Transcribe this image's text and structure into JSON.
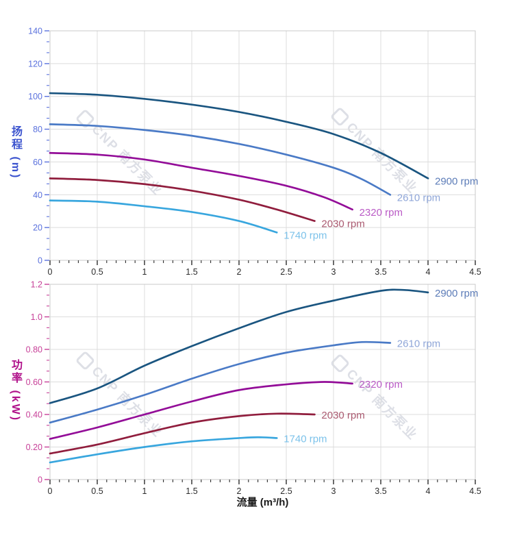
{
  "watermark": {
    "text": "CNP 南方泵业"
  },
  "chart_data": [
    {
      "type": "line",
      "title": "",
      "ylabel": "扬程 (m)",
      "xlabel": "流量 (m³/h)",
      "xlim": [
        0,
        4.5
      ],
      "ylim": [
        0,
        140
      ],
      "x_major": 0.5,
      "x_minor_divisions": 5,
      "y_major": 20,
      "y_minor_divisions": 3,
      "x_tick_labels": [
        "0",
        "0.5",
        "1",
        "1.5",
        "2",
        "2.5",
        "3",
        "3.5",
        "4",
        "4.5"
      ],
      "y_tick_labels": [
        "140",
        "120",
        "100",
        "80",
        "60",
        "40",
        "20",
        "0"
      ],
      "grid": true,
      "legend_position": "curve-end-labels",
      "axis_colors": {
        "y_tick": "#5a71dd",
        "y_title": "#3b53ce",
        "x_tick": "#2b2b2b"
      },
      "series": [
        {
          "name": "2900 rpm",
          "color": "#1a5580",
          "label_color": "#5c7cb8",
          "points": [
            [
              0,
              102
            ],
            [
              0.5,
              101
            ],
            [
              1,
              98.5
            ],
            [
              1.5,
              95
            ],
            [
              2,
              90.5
            ],
            [
              2.5,
              84.5
            ],
            [
              3,
              77
            ],
            [
              3.5,
              65.5
            ],
            [
              4,
              50
            ]
          ]
        },
        {
          "name": "2610 rpm",
          "color": "#4a7ac6",
          "label_color": "#8fa6d8",
          "points": [
            [
              0,
              83
            ],
            [
              0.5,
              82
            ],
            [
              1,
              79.5
            ],
            [
              1.5,
              76
            ],
            [
              2,
              71
            ],
            [
              2.5,
              64.5
            ],
            [
              3,
              56.5
            ],
            [
              3.3,
              49.5
            ],
            [
              3.6,
              40
            ]
          ]
        },
        {
          "name": "2320 rpm",
          "color": "#930d98",
          "label_color": "#ba5bc6",
          "points": [
            [
              0,
              65.5
            ],
            [
              0.5,
              64.5
            ],
            [
              1,
              61.5
            ],
            [
              1.5,
              56.5
            ],
            [
              2,
              51.5
            ],
            [
              2.5,
              45.5
            ],
            [
              2.9,
              38.5
            ],
            [
              3.2,
              31
            ]
          ]
        },
        {
          "name": "2030 rpm",
          "color": "#901d3d",
          "label_color": "#aa5a70",
          "points": [
            [
              0,
              50
            ],
            [
              0.5,
              49
            ],
            [
              1,
              46.5
            ],
            [
              1.5,
              42.5
            ],
            [
              2,
              37
            ],
            [
              2.4,
              31
            ],
            [
              2.8,
              24
            ]
          ]
        },
        {
          "name": "1740 rpm",
          "color": "#38a6de",
          "label_color": "#7cc2ea",
          "points": [
            [
              0,
              36.5
            ],
            [
              0.5,
              35.8
            ],
            [
              1,
              33
            ],
            [
              1.5,
              29.5
            ],
            [
              2,
              24
            ],
            [
              2.4,
              17
            ]
          ]
        }
      ]
    },
    {
      "type": "line",
      "title": "",
      "ylabel": "功率 (kW)",
      "xlabel": "流量 (m³/h)",
      "xlim": [
        0,
        4.5
      ],
      "ylim": [
        0,
        1.2
      ],
      "x_major": 0.5,
      "x_minor_divisions": 5,
      "y_major": 0.2,
      "y_minor_divisions": 3,
      "x_tick_labels": [
        "0",
        "0.5",
        "1",
        "1.5",
        "2",
        "2.5",
        "3",
        "3.5",
        "4",
        "4.5"
      ],
      "y_tick_labels": [
        "1.2",
        "1.0",
        "0.80",
        "0.60",
        "0.40",
        "0.20",
        "0"
      ],
      "grid": true,
      "legend_position": "curve-end-labels",
      "axis_colors": {
        "y_tick": "#c74098",
        "y_title": "#b0118a",
        "x_tick": "#2b2b2b"
      },
      "series": [
        {
          "name": "2900 rpm",
          "color": "#1a5580",
          "label_color": "#5c7cb8",
          "points": [
            [
              0,
              0.47
            ],
            [
              0.5,
              0.56
            ],
            [
              1,
              0.7
            ],
            [
              1.5,
              0.82
            ],
            [
              2,
              0.93
            ],
            [
              2.5,
              1.03
            ],
            [
              3,
              1.1
            ],
            [
              3.5,
              1.16
            ],
            [
              3.75,
              1.165
            ],
            [
              4,
              1.15
            ]
          ]
        },
        {
          "name": "2610 rpm",
          "color": "#4a7ac6",
          "label_color": "#8fa6d8",
          "points": [
            [
              0,
              0.35
            ],
            [
              0.5,
              0.43
            ],
            [
              1,
              0.52
            ],
            [
              1.5,
              0.62
            ],
            [
              2,
              0.71
            ],
            [
              2.5,
              0.78
            ],
            [
              3,
              0.825
            ],
            [
              3.3,
              0.845
            ],
            [
              3.6,
              0.84
            ]
          ]
        },
        {
          "name": "2320 rpm",
          "color": "#930d98",
          "label_color": "#ba5bc6",
          "points": [
            [
              0,
              0.25
            ],
            [
              0.5,
              0.32
            ],
            [
              1,
              0.4
            ],
            [
              1.5,
              0.48
            ],
            [
              2,
              0.55
            ],
            [
              2.5,
              0.585
            ],
            [
              2.9,
              0.6
            ],
            [
              3.2,
              0.59
            ]
          ]
        },
        {
          "name": "2030 rpm",
          "color": "#901d3d",
          "label_color": "#aa5a70",
          "points": [
            [
              0,
              0.16
            ],
            [
              0.5,
              0.215
            ],
            [
              1,
              0.285
            ],
            [
              1.5,
              0.35
            ],
            [
              2,
              0.39
            ],
            [
              2.4,
              0.405
            ],
            [
              2.8,
              0.4
            ]
          ]
        },
        {
          "name": "1740 rpm",
          "color": "#38a6de",
          "label_color": "#7cc2ea",
          "points": [
            [
              0,
              0.105
            ],
            [
              0.5,
              0.155
            ],
            [
              1,
              0.2
            ],
            [
              1.5,
              0.235
            ],
            [
              2,
              0.255
            ],
            [
              2.2,
              0.26
            ],
            [
              2.4,
              0.255
            ]
          ]
        }
      ]
    }
  ]
}
